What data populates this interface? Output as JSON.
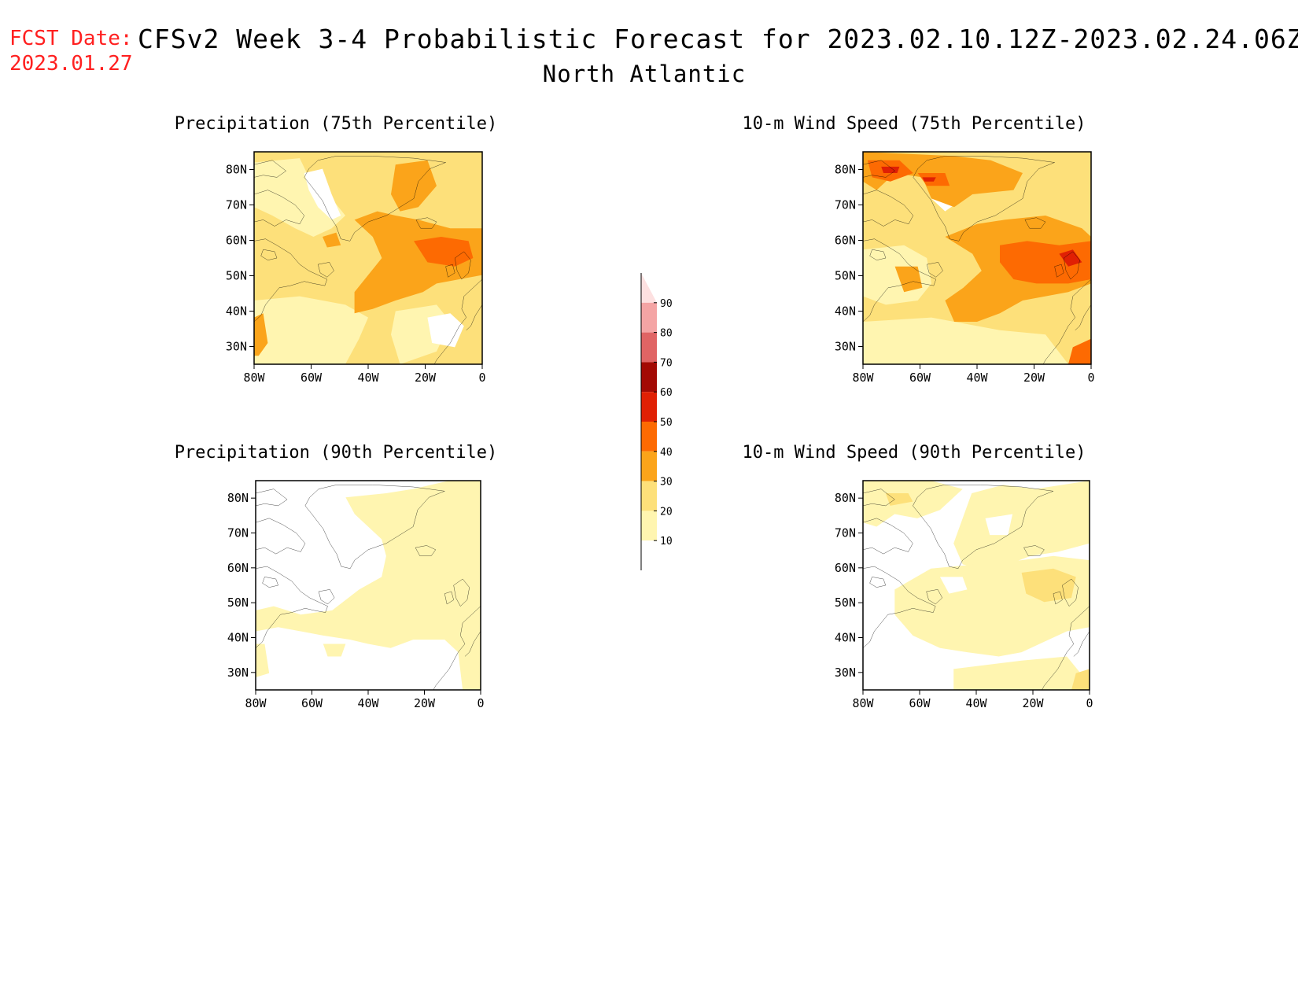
{
  "header": {
    "fcst_label": "FCST Date:",
    "fcst_date": "2023.01.27",
    "title": "CFSv2 Week 3-4 Probabilistic Forecast for 2023.02.10.12Z-2023.02.24.06Z",
    "subtitle": "North Atlantic"
  },
  "colors": {
    "background": "#ffffff",
    "header_red": "#ff2020",
    "coastline": "#000000"
  },
  "colorbar": {
    "levels": [
      "10",
      "20",
      "30",
      "40",
      "50",
      "60",
      "70",
      "80",
      "90"
    ],
    "bins": [
      {
        "range": "<10",
        "color": "#ffffff"
      },
      {
        "range": "10-20",
        "color": "#fff5b0"
      },
      {
        "range": "20-30",
        "color": "#fde07a"
      },
      {
        "range": "30-40",
        "color": "#fba41a"
      },
      {
        "range": "40-50",
        "color": "#fd6a02"
      },
      {
        "range": "50-60",
        "color": "#e02004"
      },
      {
        "range": "60-70",
        "color": "#a30a04"
      },
      {
        "range": "70-80",
        "color": "#e06464"
      },
      {
        "range": "80-90",
        "color": "#f4a4a4"
      },
      {
        "range": ">90",
        "color": "#fde0e0"
      }
    ]
  },
  "axes": {
    "lon_ticks": [
      "80W",
      "60W",
      "40W",
      "20W",
      "0"
    ],
    "lat_ticks": [
      "80N",
      "70N",
      "60N",
      "50N",
      "40N",
      "30N"
    ]
  },
  "panels": [
    {
      "id": "precip75",
      "title": "Precipitation (75th Percentile)"
    },
    {
      "id": "wind75",
      "title": "10-m Wind Speed (75th Percentile)"
    },
    {
      "id": "precip90",
      "title": "Precipitation (90th Percentile)"
    },
    {
      "id": "wind90",
      "title": "10-m Wind Speed (90th Percentile)"
    }
  ],
  "map_data": {
    "region": "North Atlantic",
    "lon_range": [
      "80W",
      "0"
    ],
    "lat_range": [
      "25N",
      "85N"
    ],
    "fields": {
      "precip75": "mostly 10-30% with a 30-40% band east of Newfoundland to British Isles, 40-50% near British Isles",
      "wind75": "mostly 20-40% with 40-50% band over central North Atlantic and near British Isles, 50-60% patches near Greenland",
      "precip90": "mostly <10% over land and west, 10-20% over central and eastern ocean",
      "wind90": "mostly 10-20% over ocean, 20-30% patches near British Isles and Greenland"
    }
  }
}
